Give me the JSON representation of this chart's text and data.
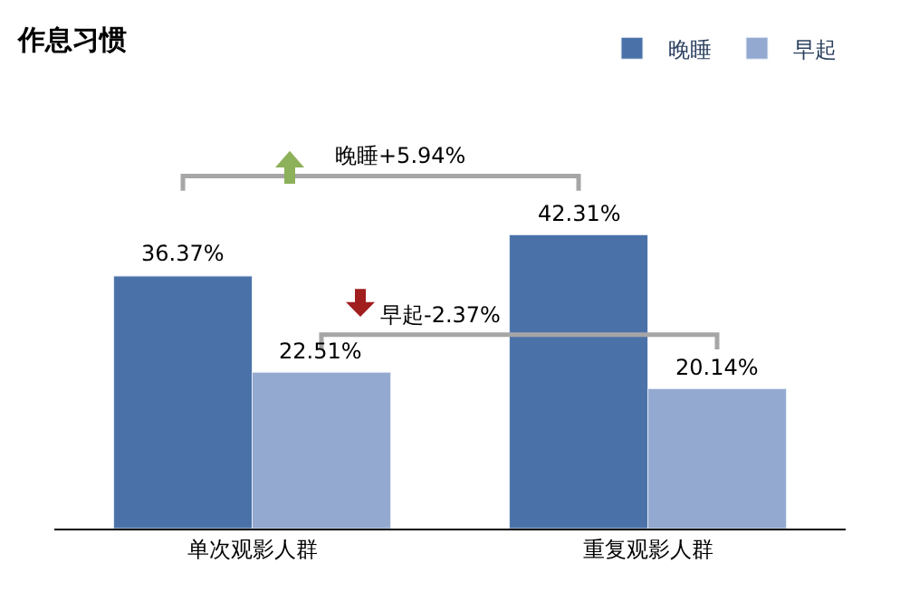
{
  "chart_data": {
    "type": "bar",
    "title": "作息习惯",
    "categories": [
      "单次观影人群",
      "重复观影人群"
    ],
    "series": [
      {
        "name": "晚睡",
        "color": "#4a72a8",
        "values": [
          36.37,
          42.31
        ],
        "value_labels": [
          "36.37%",
          "42.31%"
        ]
      },
      {
        "name": "早起",
        "color": "#94a9d0",
        "values": [
          22.51,
          20.14
        ],
        "value_labels": [
          "22.51%",
          "20.14%"
        ]
      }
    ],
    "annotations": [
      "晚睡+5.94%",
      "早起-2.37%"
    ],
    "legend": "top right"
  }
}
